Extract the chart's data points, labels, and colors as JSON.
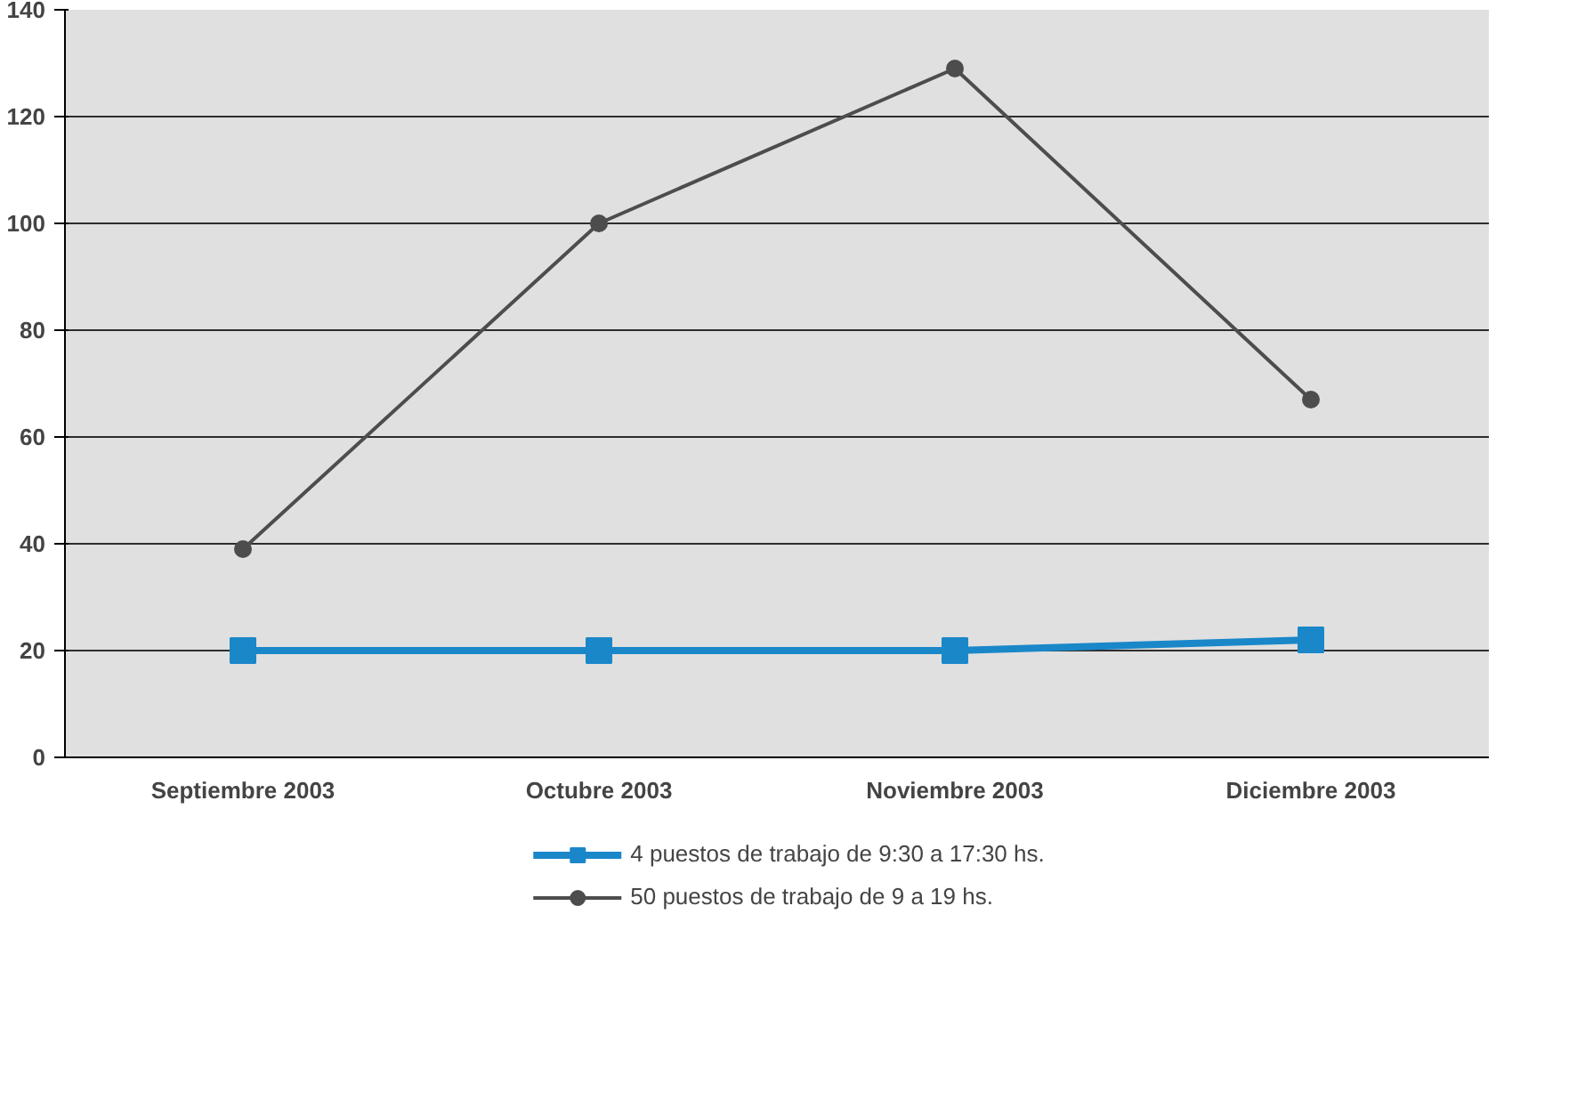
{
  "chart_data": {
    "type": "line",
    "categories": [
      "Septiembre 2003",
      "Octubre 2003",
      "Noviembre 2003",
      "Diciembre 2003"
    ],
    "series": [
      {
        "name": "4 puestos de trabajo de 9:30 a 17:30 hs.",
        "color": "#1a87c9",
        "values": [
          20,
          20,
          20,
          22
        ],
        "marker": "square"
      },
      {
        "name": "50 puestos de trabajo de 9 a 19 hs.",
        "color": "#4d4d4d",
        "values": [
          39,
          100,
          129,
          67
        ],
        "marker": "circle"
      }
    ],
    "ylim": [
      0,
      140
    ],
    "yticks": [
      0,
      20,
      40,
      60,
      80,
      100,
      120,
      140
    ],
    "grid": "y",
    "legend": "bottom",
    "line_style": "solid"
  }
}
